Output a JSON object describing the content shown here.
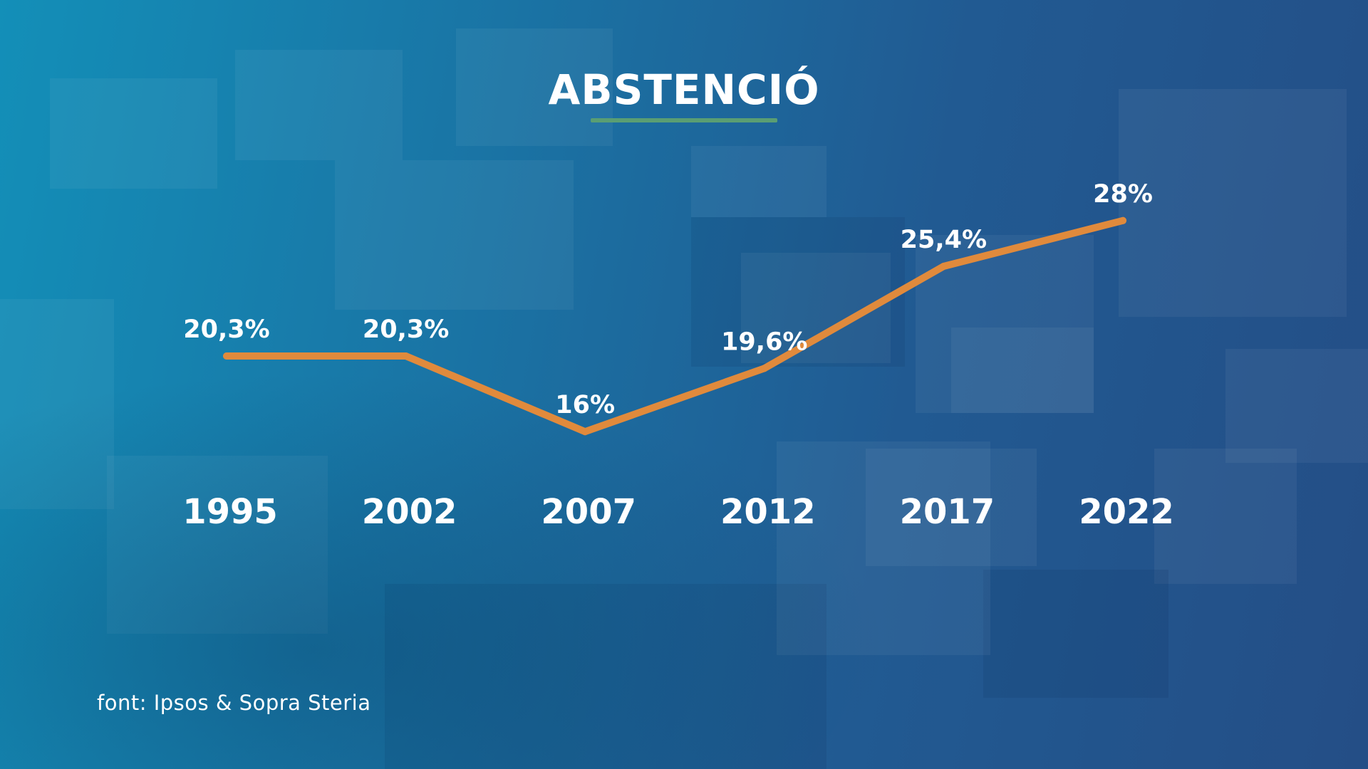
{
  "title": "ABSTENCIÓ",
  "source": "font: Ipsos & Sopra Steria",
  "colors": {
    "line": "#e08a3c",
    "title_rule": "#5a9e73",
    "text": "#ffffff"
  },
  "chart_data": {
    "type": "line",
    "title": "ABSTENCIÓ",
    "categories": [
      "1995",
      "2002",
      "2007",
      "2012",
      "2017",
      "2022"
    ],
    "values": [
      20.3,
      20.3,
      16,
      19.6,
      25.4,
      28
    ],
    "value_labels": [
      "20,3%",
      "20,3%",
      "16%",
      "19,6%",
      "25,4%",
      "28%"
    ],
    "xlabel": "",
    "ylabel": "",
    "grid": false,
    "legend": "none"
  }
}
